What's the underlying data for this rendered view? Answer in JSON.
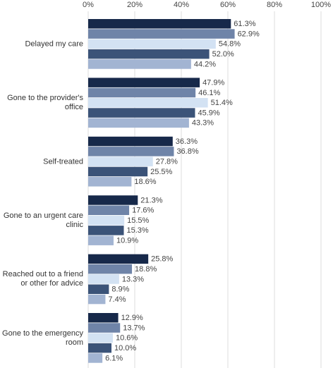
{
  "chart_data": {
    "type": "hbar",
    "categories": [
      "Delayed my care",
      "Gone to the provider's office",
      "Self-treated",
      "Gone to an urgent care clinic",
      "Reached out to a friend or other for advice",
      "Gone to the emergency room"
    ],
    "series": [
      {
        "color": "#17294a",
        "values": [
          61.3,
          47.9,
          36.3,
          21.3,
          25.8,
          12.9
        ],
        "value_labels": [
          "61.3%",
          "47.9%",
          "36.3%",
          "21.3%",
          "25.8%",
          "12.9%"
        ]
      },
      {
        "color": "#6f84a8",
        "values": [
          62.9,
          46.1,
          36.8,
          17.6,
          18.8,
          13.7
        ],
        "value_labels": [
          "62.9%",
          "46.1%",
          "36.8%",
          "17.6%",
          "18.8%",
          "13.7%"
        ]
      },
      {
        "color": "#d3e2f3",
        "values": [
          54.8,
          51.4,
          27.8,
          15.5,
          13.3,
          10.6
        ],
        "value_labels": [
          "54.8%",
          "51.4%",
          "27.8%",
          "15.5%",
          "13.3%",
          "10.6%"
        ]
      },
      {
        "color": "#3b5378",
        "values": [
          52.0,
          45.9,
          25.5,
          15.3,
          8.9,
          10.0
        ],
        "value_labels": [
          "52.0%",
          "45.9%",
          "25.5%",
          "15.3%",
          "8.9%",
          "10.0%"
        ]
      },
      {
        "color": "#a2b4d2",
        "values": [
          44.2,
          43.3,
          18.6,
          10.9,
          7.4,
          6.1
        ],
        "value_labels": [
          "44.2%",
          "43.3%",
          "18.6%",
          "10.9%",
          "7.4%",
          "6.1%"
        ]
      }
    ],
    "xlim": [
      0,
      100
    ],
    "xticks": [
      {
        "value": 0,
        "label": "0%"
      },
      {
        "value": 20,
        "label": "20%"
      },
      {
        "value": 40,
        "label": "40%"
      },
      {
        "value": 60,
        "label": "60%"
      },
      {
        "value": 80,
        "label": "80%"
      },
      {
        "value": 100,
        "label": "100%"
      }
    ],
    "grid": true
  }
}
